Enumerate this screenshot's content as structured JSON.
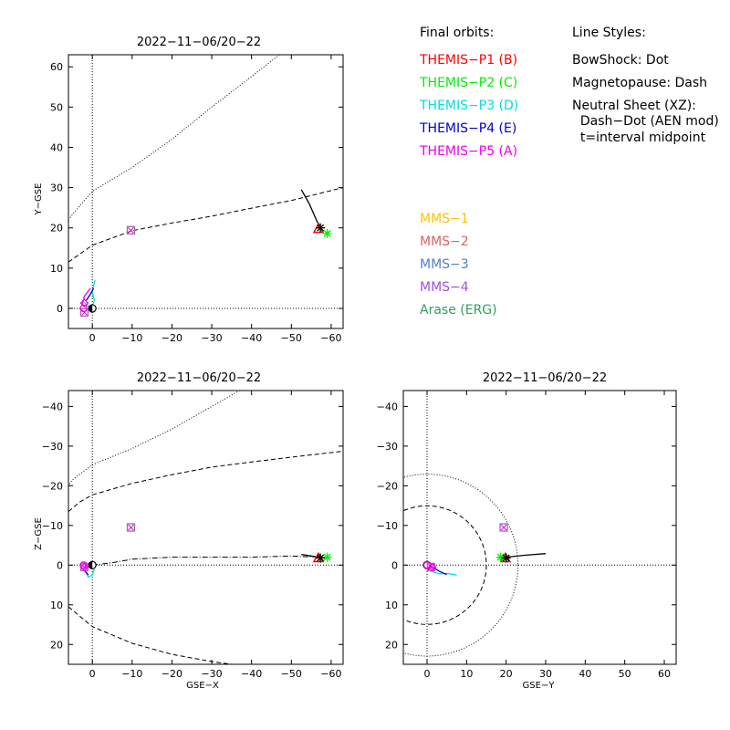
{
  "colors": {
    "background": "#ffffff",
    "axes": "#000000",
    "earth_fill": "#000000",
    "themis_p1": "#ff0000",
    "themis_p2": "#00ee00",
    "themis_p3": "#00dddd",
    "themis_p4": "#0000cc",
    "themis_p5": "#ee00ee",
    "mms_1": "#ffc200",
    "mms_2": "#e06060",
    "mms_3": "#4f7fd0",
    "mms_4": "#9e4fe0",
    "arase": "#2f9f5f",
    "marker_box": "#a070a0"
  },
  "legend": {
    "orbits_heading": "Final orbits:",
    "orbits": [
      {
        "label": "THEMIS−P1 (B)",
        "color_key": "themis_p1"
      },
      {
        "label": "THEMIS−P2 (C)",
        "color_key": "themis_p2"
      },
      {
        "label": "THEMIS−P3 (D)",
        "color_key": "themis_p3"
      },
      {
        "label": "THEMIS−P4 (E)",
        "color_key": "themis_p4"
      },
      {
        "label": "THEMIS−P5 (A)",
        "color_key": "themis_p5"
      }
    ],
    "missions": [
      {
        "label": "MMS−1",
        "color_key": "mms_1"
      },
      {
        "label": "MMS−2",
        "color_key": "mms_2"
      },
      {
        "label": "MMS−3",
        "color_key": "mms_3"
      },
      {
        "label": "MMS−4",
        "color_key": "mms_4"
      },
      {
        "label": "Arase (ERG)",
        "color_key": "arase"
      }
    ],
    "styles_heading": "Line Styles:",
    "styles": [
      "BowShock: Dot",
      "Magnetopause: Dash",
      "Neutral Sheet (XZ):",
      "  Dash−Dot (AEN mod)",
      "  t=interval midpoint"
    ]
  },
  "chart_data": [
    {
      "id": "xy",
      "type": "scatter",
      "title": "2022−11−06/20−22",
      "xlabel": "",
      "ylabel": "Y−GSE",
      "xlim": [
        6,
        -63
      ],
      "ylim": [
        63,
        -5
      ],
      "xticks": [
        0,
        -10,
        -20,
        -30,
        -40,
        -50,
        -60
      ],
      "yticks": [
        0,
        10,
        20,
        30,
        40,
        50,
        60
      ],
      "grid": false,
      "earth": [
        0,
        0
      ],
      "dotted_crosshair": [
        0,
        0
      ],
      "bow_shock": [
        [
          -47,
          63
        ],
        [
          -40,
          57.6
        ],
        [
          -30,
          50
        ],
        [
          -20,
          42
        ],
        [
          -10,
          35
        ],
        [
          0,
          29.1
        ],
        [
          5,
          23.3
        ],
        [
          6,
          22
        ]
      ],
      "magnetopause": [
        [
          6,
          11.5
        ],
        [
          0,
          15.7
        ],
        [
          -10,
          19.3
        ],
        [
          -20,
          21.2
        ],
        [
          -30,
          22.9
        ],
        [
          -40,
          24.9
        ],
        [
          -50,
          26.8
        ],
        [
          -63,
          30
        ]
      ],
      "orbits": [
        {
          "color_key": "themis_p3",
          "points": [
            [
              2,
              1.5
            ],
            [
              1,
              0.5
            ],
            [
              0,
              0.5
            ],
            [
              -0.5,
              2
            ],
            [
              0,
              4
            ],
            [
              -0.5,
              6.5
            ],
            [
              -0.7,
              7
            ]
          ]
        },
        {
          "color_key": "themis_p4",
          "points": [
            [
              1.5,
              2
            ],
            [
              0.5,
              3.5
            ],
            [
              -0.3,
              5
            ]
          ]
        },
        {
          "color_key": "themis_p5",
          "points": [
            [
              2.5,
              1
            ],
            [
              2,
              3
            ],
            [
              0.5,
              5
            ]
          ]
        },
        {
          "color_key": "axes",
          "points": [
            [
              -52.5,
              29.5
            ],
            [
              -54.5,
              26
            ],
            [
              -56.5,
              21.5
            ],
            [
              -57.5,
              20
            ]
          ]
        }
      ],
      "markers": [
        {
          "kind": "triangle",
          "color_key": "themis_p1",
          "x": -56.8,
          "y": 19.8
        },
        {
          "kind": "star",
          "color_key": "themis_p2",
          "x": -59,
          "y": 18.6
        },
        {
          "kind": "star",
          "color_key": "axes",
          "x": -57.3,
          "y": 20
        },
        {
          "kind": "box",
          "color_key": "marker_box",
          "x": -9.7,
          "y": 19.4
        },
        {
          "kind": "box",
          "color_key": "marker_box",
          "x": 2,
          "y": -1
        },
        {
          "kind": "diamond",
          "color_key": "themis_p5",
          "x": 2,
          "y": 1.3
        },
        {
          "kind": "circle",
          "color_key": "themis_p5",
          "x": 2.2,
          "y": 0
        }
      ]
    },
    {
      "id": "xz",
      "type": "scatter",
      "title": "2022−11−06/20−22",
      "xlabel": "GSE−X",
      "ylabel": "Z−GSE",
      "xlim": [
        6,
        -63
      ],
      "ylim": [
        -44,
        25
      ],
      "xticks": [
        0,
        -10,
        -20,
        -30,
        -40,
        -50,
        -60
      ],
      "yticks": [
        20,
        10,
        0,
        -10,
        -20,
        -30,
        -40
      ],
      "grid": false,
      "earth": [
        0,
        0
      ],
      "dotted_crosshair": [
        0,
        0
      ],
      "bow_shock": [
        [
          -37,
          -44
        ],
        [
          -30,
          -40
        ],
        [
          -20,
          -34.3
        ],
        [
          -10,
          -29.4
        ],
        [
          0,
          -25.3
        ],
        [
          5,
          -21.5
        ],
        [
          6,
          -20
        ]
      ],
      "magnetopause_upper": [
        [
          6,
          10.5
        ],
        [
          0,
          15.5
        ],
        [
          -10,
          19.7
        ],
        [
          -20,
          22.5
        ],
        [
          -30,
          24.3
        ],
        [
          -35,
          25
        ]
      ],
      "magnetopause_lower": [
        [
          6,
          -13.5
        ],
        [
          3,
          -16
        ],
        [
          0,
          -17.7
        ],
        [
          -10,
          -20.6
        ],
        [
          -20,
          -22.8
        ],
        [
          -30,
          -24.7
        ],
        [
          -40,
          -26
        ],
        [
          -50,
          -27.2
        ],
        [
          -63,
          -28.7
        ]
      ],
      "neutral_sheet": [
        [
          0,
          0
        ],
        [
          -5,
          -0.6
        ],
        [
          -10,
          -1.5
        ],
        [
          -20,
          -2
        ],
        [
          -30,
          -2
        ],
        [
          -40,
          -2
        ],
        [
          -50,
          -2.3
        ],
        [
          -57,
          -2
        ]
      ],
      "orbits": [
        {
          "color_key": "themis_p3",
          "points": [
            [
              2.5,
              0.5
            ],
            [
              1.5,
              2
            ],
            [
              1,
              3
            ],
            [
              0,
              2.5
            ],
            [
              -0.5,
              1
            ]
          ]
        },
        {
          "color_key": "themis_p4",
          "points": [
            [
              1.8,
              1.5
            ],
            [
              1,
              2.5
            ]
          ]
        },
        {
          "color_key": "axes",
          "points": [
            [
              -52.5,
              -2.7
            ],
            [
              -55,
              -2.3
            ],
            [
              -57.5,
              -1.8
            ]
          ]
        }
      ],
      "markers": [
        {
          "kind": "triangle",
          "color_key": "themis_p1",
          "x": -56.8,
          "y": -1.8
        },
        {
          "kind": "star",
          "color_key": "themis_p2",
          "x": -59,
          "y": -2
        },
        {
          "kind": "star",
          "color_key": "axes",
          "x": -57.3,
          "y": -1.8
        },
        {
          "kind": "box",
          "color_key": "marker_box",
          "x": -9.7,
          "y": -9.5
        },
        {
          "kind": "box",
          "color_key": "marker_box",
          "x": 2,
          "y": 0.5
        },
        {
          "kind": "diamond",
          "color_key": "themis_p5",
          "x": 2,
          "y": 0.5
        },
        {
          "kind": "circle",
          "color_key": "themis_p5",
          "x": 2.2,
          "y": 0
        }
      ]
    },
    {
      "id": "yz",
      "type": "scatter",
      "title": "2022−11−06/20−22",
      "xlabel": "GSE−Y",
      "ylabel": "",
      "xlim": [
        -6,
        63
      ],
      "ylim": [
        -44,
        25
      ],
      "xticks": [
        0,
        10,
        20,
        30,
        40,
        50,
        60
      ],
      "yticks": [
        20,
        10,
        0,
        -10,
        -20,
        -30,
        -40
      ],
      "grid": false,
      "earth": [
        0,
        0
      ],
      "dotted_crosshair": [
        0,
        0
      ],
      "bow_shock_radius": 23,
      "magnetopause_radius": 15,
      "orbits": [
        {
          "color_key": "themis_p3",
          "points": [
            [
              -0.5,
              0.5
            ],
            [
              1,
              1.5
            ],
            [
              3,
              2.2
            ],
            [
              5,
              2.1
            ],
            [
              7.5,
              2.5
            ]
          ]
        },
        {
          "color_key": "themis_p4",
          "points": [
            [
              1.5,
              0.5
            ],
            [
              3,
              1.5
            ],
            [
              5,
              2.4
            ]
          ]
        },
        {
          "color_key": "themis_p5",
          "points": [
            [
              0.5,
              0
            ],
            [
              2,
              1
            ]
          ]
        },
        {
          "color_key": "axes",
          "points": [
            [
              20,
              -2
            ],
            [
              25,
              -2.5
            ],
            [
              30,
              -2.9
            ]
          ]
        }
      ],
      "markers": [
        {
          "kind": "triangle",
          "color_key": "themis_p1",
          "x": 19.8,
          "y": -1.8
        },
        {
          "kind": "star",
          "color_key": "themis_p2",
          "x": 18.6,
          "y": -2
        },
        {
          "kind": "star",
          "color_key": "axes",
          "x": 20,
          "y": -1.8
        },
        {
          "kind": "box",
          "color_key": "marker_box",
          "x": 19.4,
          "y": -9.5
        },
        {
          "kind": "box",
          "color_key": "marker_box",
          "x": 1,
          "y": 0.5
        },
        {
          "kind": "diamond",
          "color_key": "themis_p5",
          "x": 1.3,
          "y": 0.5
        },
        {
          "kind": "circle",
          "color_key": "themis_p5",
          "x": 0,
          "y": 0
        }
      ]
    }
  ]
}
